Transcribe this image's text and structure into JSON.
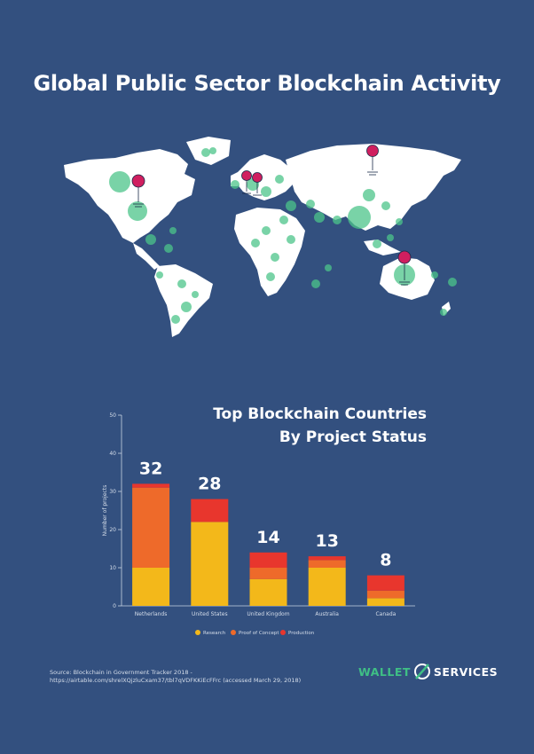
{
  "page": {
    "title": "Global Public Sector Blockchain Activity",
    "source": "Source: Blockchain in Government Tracker 2018 - https://airtable.com/shrelXQjzluCxam37/tbl7qVDFKKiEcFFrc (accessed March 29, 2018)",
    "brand_left": "WALLET",
    "brand_right": "SERVICES",
    "colors": {
      "background": "#33507f",
      "land": "#ffffff",
      "bubble": "#4cc48a",
      "pin": "#d01f5f",
      "research": "#f3b81a",
      "proof_of_concept": "#ee6a2a",
      "production": "#e8362d"
    }
  },
  "map_pins": [
    "Canada",
    "Netherlands",
    "United Kingdom",
    "Russia",
    "Australia"
  ],
  "chart_data": {
    "type": "bar",
    "stacked": true,
    "title": "Top Blockchain Countries\nBy Project Status",
    "title_lines": [
      "Top Blockchain Countries",
      "By Project Status"
    ],
    "categories": [
      "Netherlands",
      "United States",
      "United Kingdom",
      "Australia",
      "Canada"
    ],
    "totals": [
      32,
      28,
      14,
      13,
      8
    ],
    "series": [
      {
        "name": "Research",
        "values": [
          10,
          22,
          7,
          10,
          2
        ]
      },
      {
        "name": "Proof of Concept",
        "values": [
          21,
          0,
          3,
          2,
          2
        ]
      },
      {
        "name": "Production",
        "values": [
          1,
          6,
          4,
          1,
          4
        ]
      }
    ],
    "ylabel": "Number of projects",
    "xlabel": "",
    "ylim": [
      0,
      50
    ],
    "yticks": [
      0,
      10,
      20,
      30,
      40,
      50
    ],
    "grid": false,
    "legend": "bottom"
  }
}
